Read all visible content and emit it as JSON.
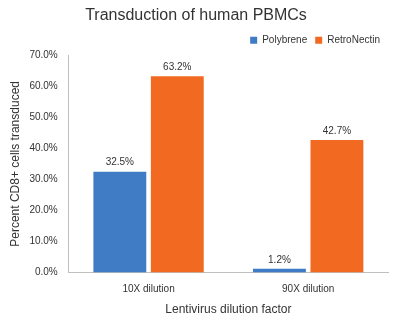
{
  "chart_data": {
    "type": "bar",
    "title": "Transduction of human PBMCs",
    "x_label": "Lentivirus dilution factor",
    "y_label": "Percent CD8+ cells transduced",
    "categories": [
      "10X dilution",
      "90X dilution"
    ],
    "series": [
      {
        "name": "Polybrene",
        "color": "#3f7cc5",
        "values": [
          32.5,
          1.2
        ],
        "value_labels": [
          "32.5%",
          "1.2%"
        ]
      },
      {
        "name": "RetroNectin",
        "color": "#f26a21",
        "values": [
          63.2,
          42.7
        ],
        "value_labels": [
          "63.2%",
          "42.7%"
        ]
      }
    ],
    "ylim": [
      0,
      70
    ],
    "yticks": [
      {
        "value": 0,
        "label": "0.0%"
      },
      {
        "value": 10,
        "label": "10.0%"
      },
      {
        "value": 20,
        "label": "20.0%"
      },
      {
        "value": 30,
        "label": "30.0%"
      },
      {
        "value": 40,
        "label": "40.0%"
      },
      {
        "value": 50,
        "label": "50.0%"
      },
      {
        "value": 60,
        "label": "60.0%"
      },
      {
        "value": 70,
        "label": "70.0%"
      }
    ],
    "grid": false,
    "legend": "top",
    "data_labels": true
  }
}
